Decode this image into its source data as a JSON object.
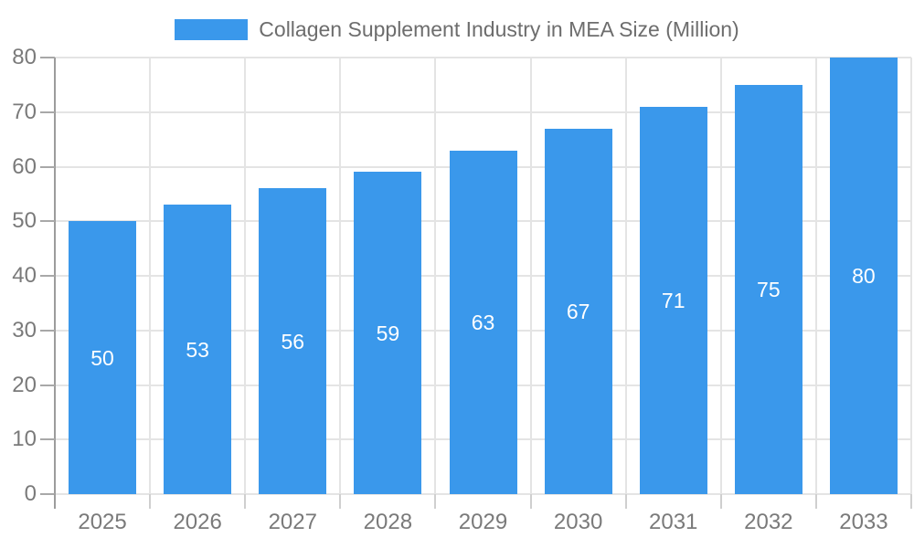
{
  "chart_data": {
    "type": "bar",
    "title": "Collagen Supplement Industry in MEA Size (Million)",
    "categories": [
      "2025",
      "2026",
      "2027",
      "2028",
      "2029",
      "2030",
      "2031",
      "2032",
      "2033"
    ],
    "values": [
      50,
      53,
      56,
      59,
      63,
      67,
      71,
      75,
      80
    ],
    "xlabel": "",
    "ylabel": "",
    "ylim": [
      0,
      80
    ],
    "yticks": [
      0,
      10,
      20,
      30,
      40,
      50,
      60,
      70,
      80
    ],
    "grid": true,
    "legend_position": "top-center",
    "bar_labels_shown": true,
    "colors": {
      "bar": "#3A98EB",
      "bar_label": "#FFFFFF",
      "axis_text": "#7A7A7A",
      "title_text": "#6D6D6D",
      "grid_line": "#E4E4E4",
      "axis_line": "#9C9C9C",
      "y_tick": "#A8A8A8",
      "x_tick": "#CFCFCF",
      "background": "#FFFFFF"
    }
  }
}
